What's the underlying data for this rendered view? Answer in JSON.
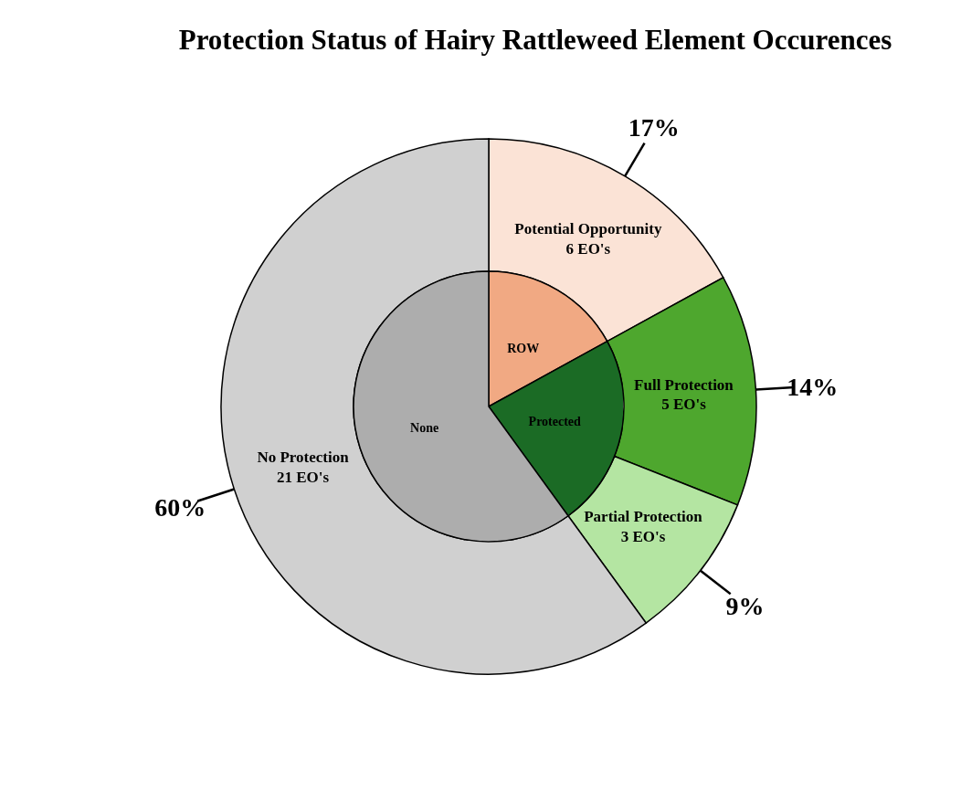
{
  "chart_data": [
    {
      "type": "donut",
      "title": "Protection Status of Hairy Rattleweed Element Occurences",
      "categories": [
        "Potential Opportunity\n6 EO's",
        "Full Protection\n5 EO's",
        "Partial Protection\n3 EO's",
        "No Protection\n21 EO's"
      ],
      "values": [
        17,
        14,
        9,
        60
      ],
      "value_labels": [
        "17%",
        "14%",
        "9%",
        "60%"
      ],
      "colors": [
        "#fbe3d6",
        "#4ea72e",
        "#b4e5a2",
        "#d0d0d0"
      ]
    },
    {
      "type": "pie",
      "categories": [
        "ROW",
        "Protected",
        "None"
      ],
      "values": [
        17,
        23,
        60
      ],
      "colors": [
        "#f1a983",
        "#1b6b25",
        "#adadad"
      ]
    }
  ]
}
